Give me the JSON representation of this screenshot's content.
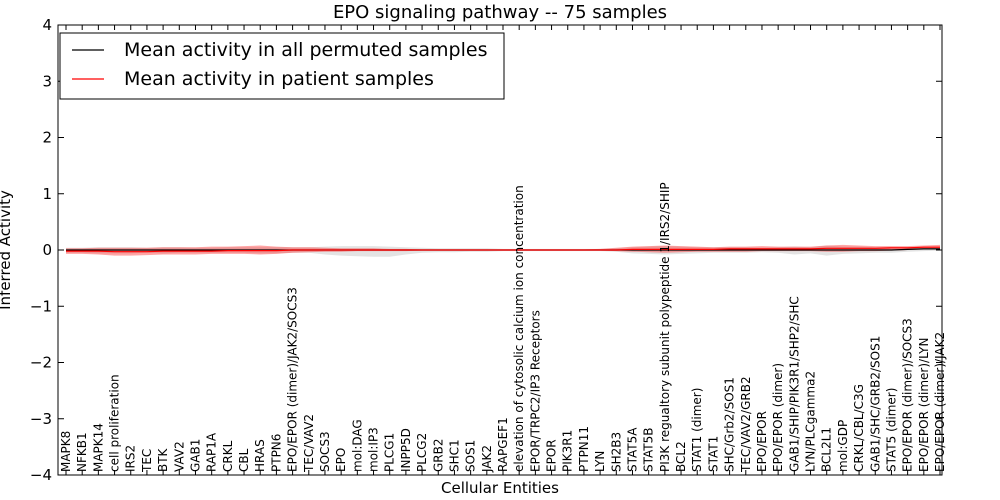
{
  "chart_data": {
    "type": "line",
    "title": "EPO signaling pathway -- 75 samples",
    "xlabel": "Cellular Entities",
    "ylabel": "Inferred Activity",
    "ylim": [
      -4,
      4
    ],
    "yticks": [
      -4,
      -3,
      -2,
      -1,
      0,
      1,
      2,
      3,
      4
    ],
    "ytick_labels": [
      "−4",
      "−3",
      "−2",
      "−1",
      "0",
      "1",
      "2",
      "3",
      "4"
    ],
    "grid": false,
    "legend": {
      "position": "top-left",
      "entries": [
        {
          "label": "Mean activity in all permuted samples",
          "color": "#000000"
        },
        {
          "label": "Mean activity in patient samples",
          "color": "#ff0000"
        }
      ]
    },
    "categories": [
      "MAPK8",
      "NFKB1",
      "MAPK14",
      "cell proliferation",
      "IRS2",
      "TEC",
      "BTK",
      "VAV2",
      "GAB1",
      "RAP1A",
      "CRKL",
      "CBL",
      "HRAS",
      "PTPN6",
      "EPO/EPOR (dimer)/JAK2/SOCS3",
      "TEC/VAV2",
      "SOCS3",
      "EPO",
      "mol:DAG",
      "mol:IP3",
      "PLCG1",
      "INPP5D",
      "PLCG2",
      "GRB2",
      "SHC1",
      "SOS1",
      "JAK2",
      "RAPGEF1",
      "elevation of cytosolic calcium ion concentration",
      "EPOR/TRPC2/IP3 Receptors",
      "EPOR",
      "PIK3R1",
      "PTPN11",
      "LYN",
      "SH2B3",
      "STAT5A",
      "STAT5B",
      "PI3K regualtory subunit polypeptide 1/IRS2/SHIP",
      "BCL2",
      "STAT1 (dimer)",
      "STAT1",
      "SHC/Grb2/SOS1",
      "TEC/VAV2/GRB2",
      "EPO/EPOR",
      "EPO/EPOR (dimer)",
      "GAB1/SHIP/PIK3R1/SHP2/SHC",
      "LYN/PLCgamma2",
      "BCL2L1",
      "mol:GDP",
      "CRKL/CBL/C3G",
      "GAB1/SHC/GRB2/SOS1",
      "STAT5 (dimer)",
      "EPO/EPOR (dimer)/SOCS3",
      "EPO/EPOR (dimer)/LYN",
      "EPO/EPOR (dimer)/JAK2"
    ],
    "series": [
      {
        "name": "Mean activity in all permuted samples",
        "color": "#000000",
        "values": [
          0,
          0,
          0,
          0,
          0,
          0,
          0,
          0,
          0,
          0,
          0,
          0,
          0,
          0,
          0,
          0,
          0,
          0,
          0,
          0,
          0,
          0,
          0,
          0,
          0,
          0,
          0,
          0,
          0,
          0,
          0,
          0,
          0,
          0,
          0,
          0,
          0,
          0,
          0,
          0,
          0,
          0,
          0,
          0,
          0,
          0,
          0,
          0,
          0,
          0,
          0,
          0,
          0.01,
          0.02,
          0.02
        ],
        "band_lower": [
          -0.05,
          -0.05,
          -0.06,
          -0.06,
          -0.06,
          -0.05,
          -0.06,
          -0.05,
          -0.05,
          -0.05,
          -0.05,
          -0.05,
          -0.06,
          -0.06,
          -0.05,
          -0.05,
          -0.08,
          -0.1,
          -0.11,
          -0.12,
          -0.12,
          -0.08,
          -0.05,
          -0.04,
          -0.04,
          -0.03,
          -0.03,
          -0.02,
          -0.02,
          -0.02,
          -0.02,
          -0.02,
          -0.02,
          -0.02,
          -0.03,
          -0.06,
          -0.07,
          -0.08,
          -0.07,
          -0.06,
          -0.05,
          -0.05,
          -0.05,
          -0.04,
          -0.05,
          -0.08,
          -0.06,
          -0.1,
          -0.07,
          -0.06,
          -0.05,
          -0.05,
          -0.03,
          -0.02,
          -0.01
        ],
        "band_upper": [
          0.04,
          0.04,
          0.05,
          0.05,
          0.05,
          0.04,
          0.05,
          0.05,
          0.04,
          0.04,
          0.05,
          0.05,
          0.05,
          0.05,
          0.05,
          0.05,
          0.06,
          0.07,
          0.07,
          0.07,
          0.06,
          0.05,
          0.04,
          0.03,
          0.03,
          0.03,
          0.03,
          0.02,
          0.02,
          0.02,
          0.02,
          0.02,
          0.02,
          0.02,
          0.03,
          0.05,
          0.06,
          0.07,
          0.06,
          0.05,
          0.05,
          0.05,
          0.05,
          0.04,
          0.05,
          0.06,
          0.05,
          0.08,
          0.06,
          0.06,
          0.05,
          0.05,
          0.05,
          0.05,
          0.05
        ]
      },
      {
        "name": "Mean activity in patient samples",
        "color": "#ff0000",
        "values": [
          -0.02,
          -0.02,
          -0.02,
          -0.03,
          -0.03,
          -0.03,
          -0.02,
          -0.02,
          -0.02,
          -0.02,
          -0.01,
          -0.01,
          -0.01,
          -0.01,
          0,
          0,
          0,
          0,
          0,
          0,
          0,
          0,
          0,
          0,
          0,
          0,
          0,
          0,
          0,
          0,
          0,
          0,
          0,
          0,
          0,
          0.01,
          0.01,
          0.01,
          0.01,
          0.01,
          0.01,
          0.02,
          0.02,
          0.02,
          0.02,
          0.02,
          0.02,
          0.03,
          0.03,
          0.03,
          0.03,
          0.04,
          0.04,
          0.05,
          0.05
        ],
        "band_lower": [
          -0.07,
          -0.07,
          -0.08,
          -0.1,
          -0.1,
          -0.09,
          -0.08,
          -0.08,
          -0.08,
          -0.07,
          -0.07,
          -0.07,
          -0.08,
          -0.07,
          -0.05,
          -0.04,
          -0.03,
          -0.03,
          -0.02,
          -0.02,
          -0.02,
          -0.02,
          -0.01,
          -0.01,
          -0.01,
          -0.01,
          -0.01,
          -0.01,
          -0.01,
          -0.01,
          -0.01,
          -0.01,
          -0.01,
          -0.01,
          -0.02,
          -0.03,
          -0.04,
          -0.05,
          -0.04,
          -0.03,
          -0.03,
          -0.03,
          -0.03,
          -0.02,
          -0.02,
          -0.02,
          -0.02,
          -0.03,
          -0.03,
          -0.02,
          -0.02,
          -0.01,
          0,
          0.01,
          0.01
        ],
        "band_upper": [
          0.03,
          0.03,
          0.04,
          0.04,
          0.04,
          0.04,
          0.05,
          0.05,
          0.05,
          0.06,
          0.06,
          0.07,
          0.08,
          0.06,
          0.05,
          0.05,
          0.04,
          0.03,
          0.03,
          0.03,
          0.02,
          0.02,
          0.01,
          0.01,
          0.01,
          0.01,
          0.01,
          0.01,
          0.01,
          0.01,
          0.01,
          0.01,
          0.01,
          0.02,
          0.04,
          0.06,
          0.07,
          0.08,
          0.07,
          0.06,
          0.05,
          0.06,
          0.06,
          0.07,
          0.06,
          0.06,
          0.06,
          0.08,
          0.09,
          0.08,
          0.07,
          0.07,
          0.07,
          0.08,
          0.09
        ]
      }
    ]
  }
}
